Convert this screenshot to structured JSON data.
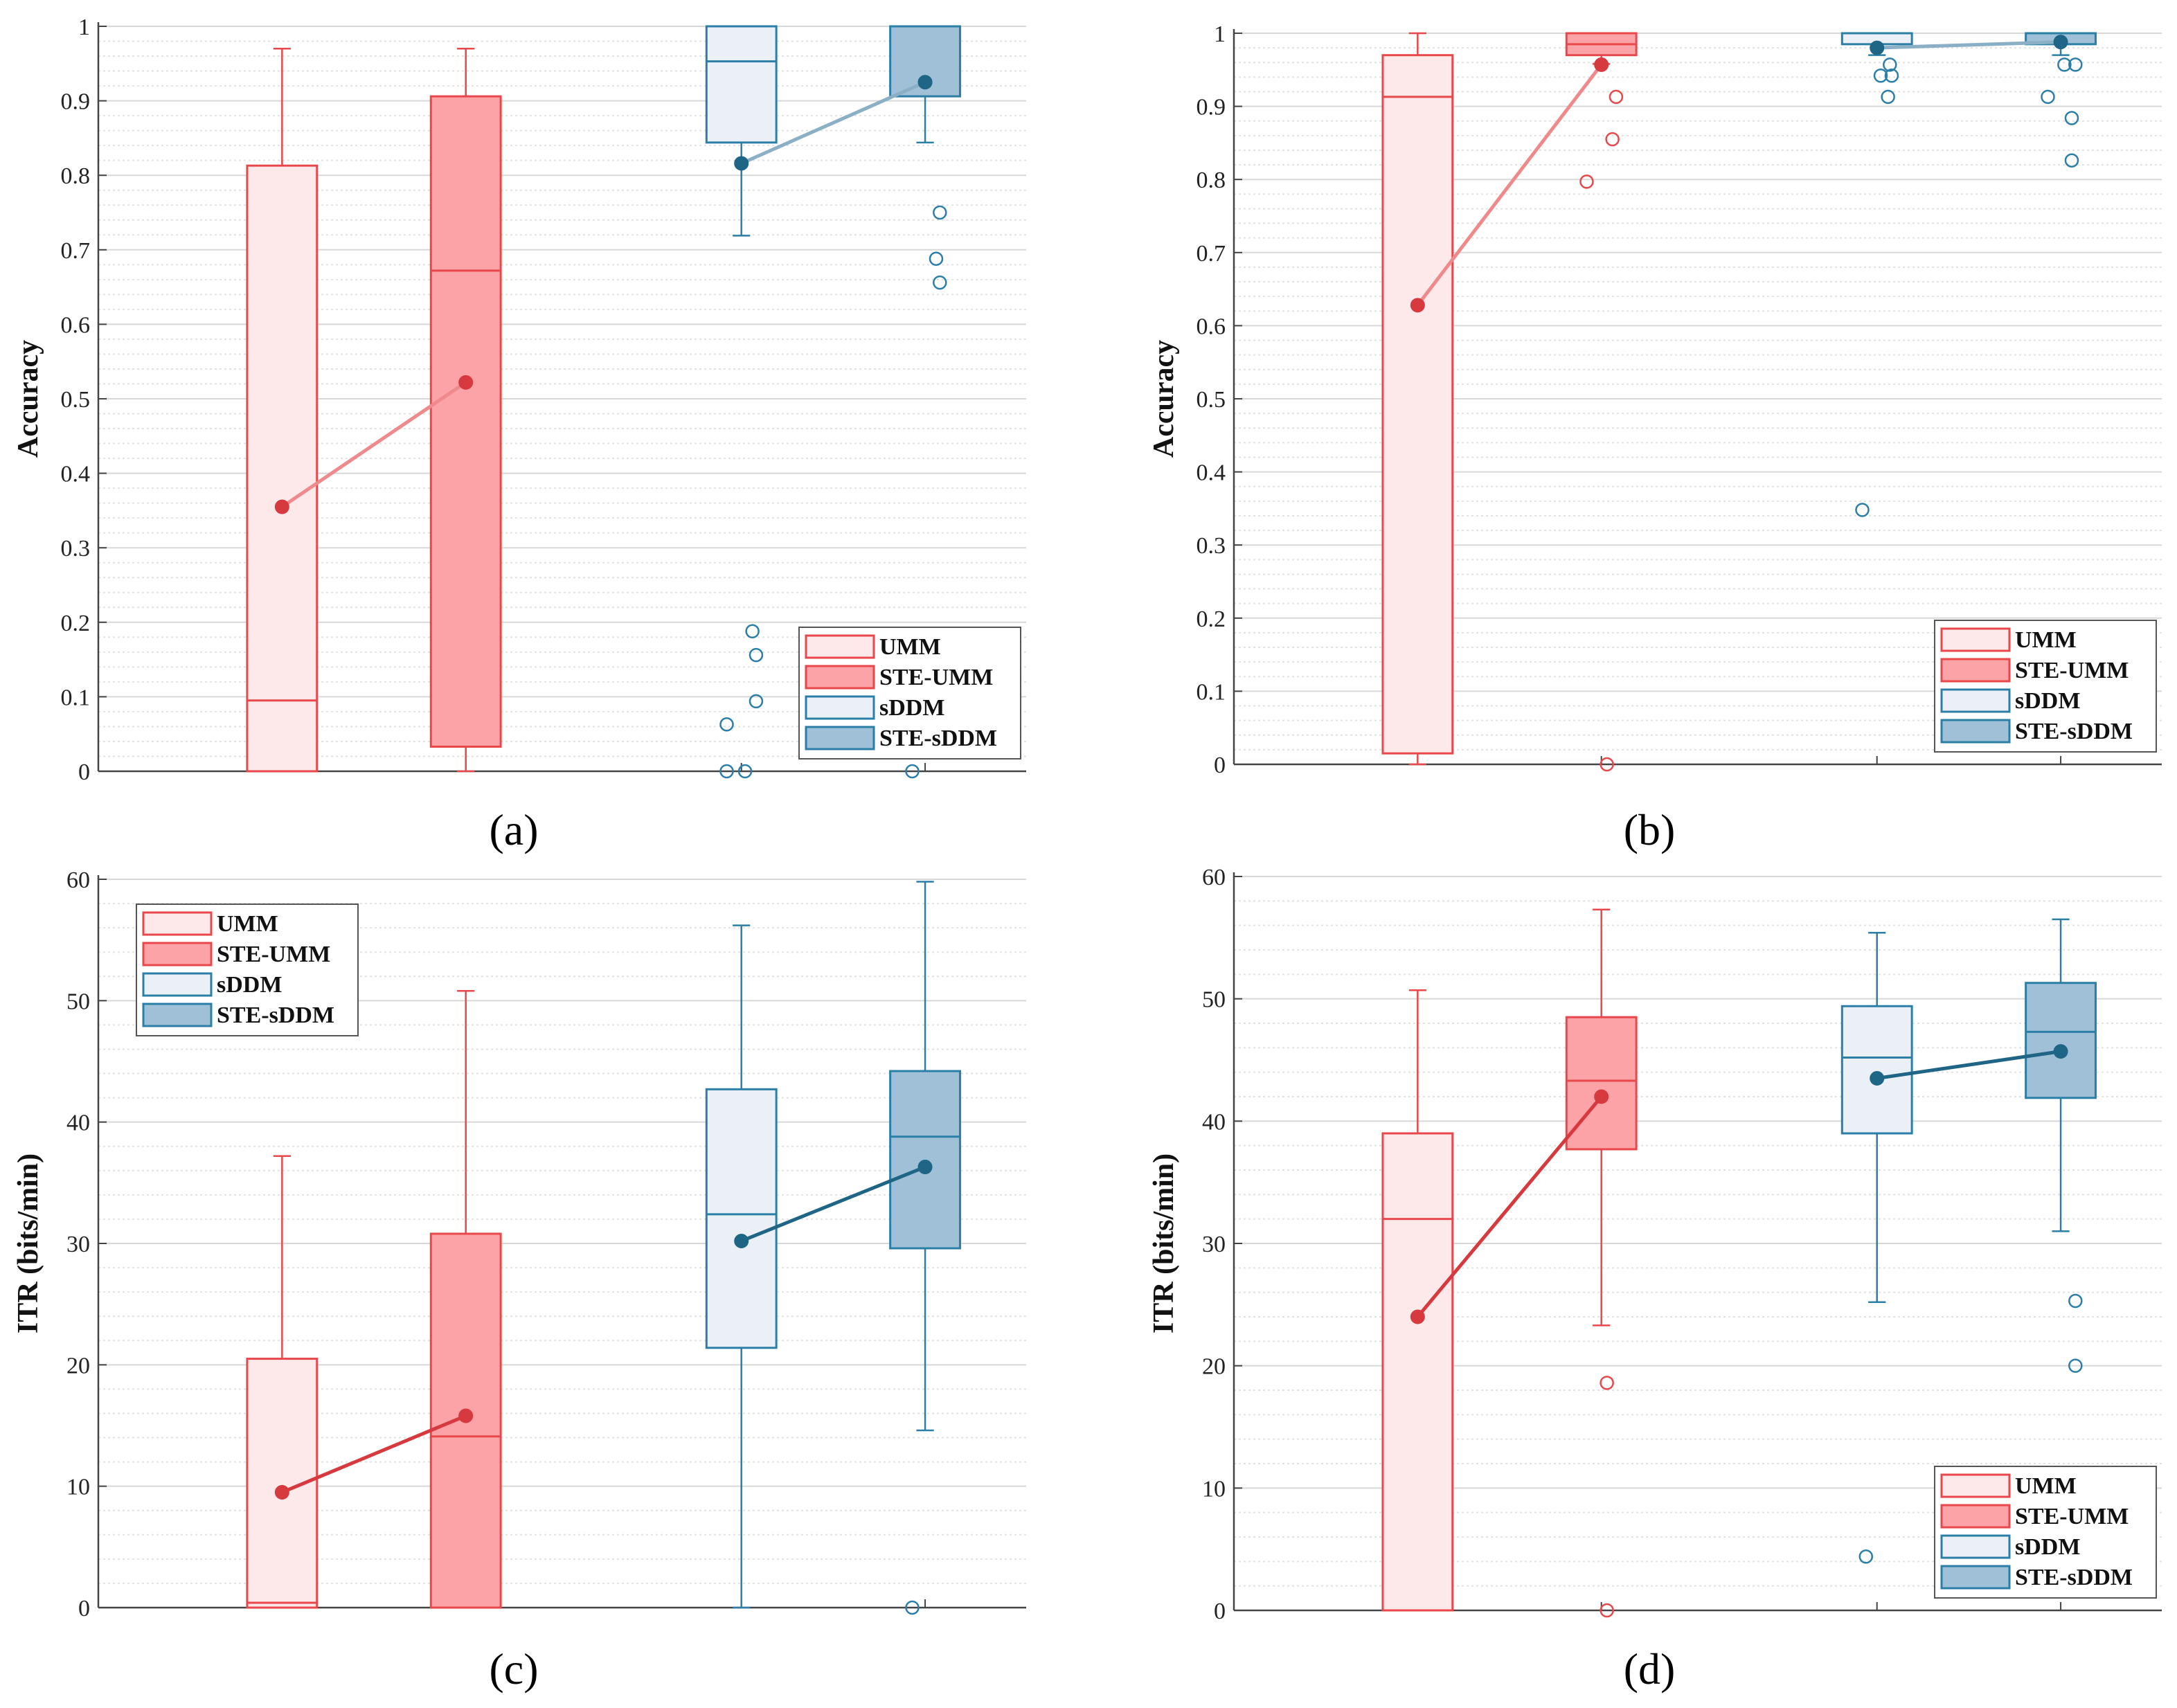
{
  "legend_entries": [
    "UMM",
    "STE-UMM",
    "sDDM",
    "STE-sDDM"
  ],
  "colors": {
    "red_line": "#e8474b",
    "red_fill_light": "#fde9ea",
    "red_fill_dark": "#fba3a6",
    "blue_line": "#2b7fa7",
    "blue_fill_light": "#eaf0f6",
    "blue_fill_dark": "#9fc0d6",
    "mean_red": "#d63a3e",
    "mean_blue": "#1f6585"
  },
  "chart_data": [
    {
      "type": "box",
      "caption": "(a)",
      "ylabel": "Accuracy",
      "ylim": [
        0,
        1
      ],
      "yticks": [
        "0",
        "0.1",
        "0.2",
        "0.3",
        "0.4",
        "0.5",
        "0.6",
        "0.7",
        "0.8",
        "0.9",
        "1"
      ],
      "legend_position": "bottom-right",
      "mean_line_style": "light",
      "boxes": [
        {
          "name": "UMM",
          "x": 1,
          "min": 0.0,
          "q1": 0.0,
          "median": 0.095,
          "q3": 0.813,
          "max": 0.97,
          "mean": 0.355,
          "outliers": []
        },
        {
          "name": "STE-UMM",
          "x": 2,
          "min": 0.0,
          "q1": 0.033,
          "median": 0.672,
          "q3": 0.906,
          "max": 0.97,
          "mean": 0.522,
          "outliers": []
        },
        {
          "name": "sDDM",
          "x": 3.5,
          "min": 0.719,
          "q1": 0.844,
          "median": 0.953,
          "q3": 1.0,
          "max": 1.0,
          "mean": 0.816,
          "outliers": [
            {
              "dx": -0.08,
              "v": 0.0
            },
            {
              "dx": 0.02,
              "v": 0.0
            },
            {
              "dx": -0.08,
              "v": 0.063
            },
            {
              "dx": 0.08,
              "v": 0.094
            },
            {
              "dx": 0.08,
              "v": 0.156
            },
            {
              "dx": 0.06,
              "v": 0.188
            }
          ]
        },
        {
          "name": "STE-sDDM",
          "x": 4.5,
          "min": 0.844,
          "q1": 0.906,
          "median": 1.0,
          "q3": 1.0,
          "max": 1.0,
          "mean": 0.925,
          "outliers": [
            {
              "dx": -0.07,
              "v": 0.0
            },
            {
              "dx": 0.08,
              "v": 0.656
            },
            {
              "dx": 0.06,
              "v": 0.688
            },
            {
              "dx": 0.08,
              "v": 0.75
            }
          ]
        }
      ]
    },
    {
      "type": "box",
      "caption": "(b)",
      "ylabel": "Accuracy",
      "ylim": [
        0,
        1
      ],
      "yticks": [
        "0",
        "0.1",
        "0.2",
        "0.3",
        "0.4",
        "0.5",
        "0.6",
        "0.7",
        "0.8",
        "0.9",
        "1"
      ],
      "legend_position": "bottom-right",
      "mean_line_style": "light",
      "boxes": [
        {
          "name": "UMM",
          "x": 1,
          "min": 0.0,
          "q1": 0.015,
          "median": 0.913,
          "q3": 0.97,
          "max": 1.0,
          "mean": 0.628,
          "outliers": []
        },
        {
          "name": "STE-UMM",
          "x": 2,
          "min": 0.958,
          "q1": 0.97,
          "median": 0.985,
          "q3": 1.0,
          "max": 1.0,
          "mean": 0.957,
          "outliers": [
            {
              "dx": 0.03,
              "v": 0.0
            },
            {
              "dx": -0.08,
              "v": 0.797
            },
            {
              "dx": 0.06,
              "v": 0.855
            },
            {
              "dx": 0.08,
              "v": 0.913
            }
          ]
        },
        {
          "name": "sDDM",
          "x": 3.5,
          "min": 0.97,
          "q1": 0.985,
          "median": 1.0,
          "q3": 1.0,
          "max": 1.0,
          "mean": 0.98,
          "outliers": [
            {
              "dx": -0.08,
              "v": 0.348
            },
            {
              "dx": 0.06,
              "v": 0.913
            },
            {
              "dx": 0.02,
              "v": 0.942
            },
            {
              "dx": 0.08,
              "v": 0.942
            },
            {
              "dx": 0.07,
              "v": 0.957
            }
          ]
        },
        {
          "name": "STE-sDDM",
          "x": 4.5,
          "min": 0.97,
          "q1": 0.985,
          "median": 1.0,
          "q3": 1.0,
          "max": 1.0,
          "mean": 0.988,
          "outliers": [
            {
              "dx": -0.07,
              "v": 0.913
            },
            {
              "dx": 0.06,
              "v": 0.826
            },
            {
              "dx": 0.06,
              "v": 0.884
            },
            {
              "dx": 0.02,
              "v": 0.957
            },
            {
              "dx": 0.08,
              "v": 0.957
            }
          ]
        }
      ]
    },
    {
      "type": "box",
      "caption": "(c)",
      "ylabel": "ITR (bits/min)",
      "ylim": [
        0,
        60
      ],
      "yticks": [
        "0",
        "10",
        "20",
        "30",
        "40",
        "50",
        "60"
      ],
      "legend_position": "top-left",
      "mean_line_style": "dark",
      "boxes": [
        {
          "name": "UMM",
          "x": 1,
          "min": 0.0,
          "q1": 0.0,
          "median": 0.4,
          "q3": 20.5,
          "max": 37.2,
          "mean": 9.5,
          "outliers": []
        },
        {
          "name": "STE-UMM",
          "x": 2,
          "min": 0.0,
          "q1": 0.0,
          "median": 14.1,
          "q3": 30.8,
          "max": 50.8,
          "mean": 15.8,
          "outliers": []
        },
        {
          "name": "sDDM",
          "x": 3.5,
          "min": 0.0,
          "q1": 21.4,
          "median": 32.4,
          "q3": 42.7,
          "max": 56.2,
          "mean": 30.2,
          "outliers": []
        },
        {
          "name": "STE-sDDM",
          "x": 4.5,
          "min": 14.6,
          "q1": 29.6,
          "median": 38.8,
          "q3": 44.2,
          "max": 59.8,
          "mean": 36.3,
          "outliers": [
            {
              "dx": -0.07,
              "v": 0.0
            }
          ]
        }
      ]
    },
    {
      "type": "box",
      "caption": "(d)",
      "ylabel": "ITR (bits/min)",
      "ylim": [
        0,
        60
      ],
      "yticks": [
        "0",
        "10",
        "20",
        "30",
        "40",
        "50",
        "60"
      ],
      "legend_position": "bottom-right",
      "mean_line_style": "dark",
      "boxes": [
        {
          "name": "UMM",
          "x": 1,
          "min": 0.0,
          "q1": 0.0,
          "median": 32.0,
          "q3": 39.0,
          "max": 50.7,
          "mean": 24.0,
          "outliers": []
        },
        {
          "name": "STE-UMM",
          "x": 2,
          "min": 23.3,
          "q1": 37.7,
          "median": 43.3,
          "q3": 48.5,
          "max": 57.3,
          "mean": 42.0,
          "outliers": [
            {
              "dx": 0.03,
              "v": 0.0
            },
            {
              "dx": 0.03,
              "v": 18.6
            }
          ]
        },
        {
          "name": "sDDM",
          "x": 3.5,
          "min": 25.2,
          "q1": 39.0,
          "median": 45.2,
          "q3": 49.4,
          "max": 55.4,
          "mean": 43.5,
          "outliers": [
            {
              "dx": -0.06,
              "v": 4.4
            }
          ]
        },
        {
          "name": "STE-sDDM",
          "x": 4.5,
          "min": 31.0,
          "q1": 41.9,
          "median": 47.3,
          "q3": 51.3,
          "max": 56.5,
          "mean": 45.7,
          "outliers": [
            {
              "dx": 0.08,
              "v": 20.0
            },
            {
              "dx": 0.08,
              "v": 25.3
            }
          ]
        }
      ]
    }
  ]
}
